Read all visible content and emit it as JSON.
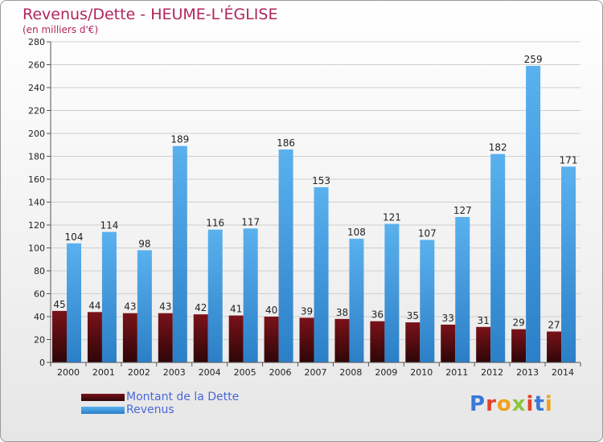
{
  "title": "Revenus/Dette - HEUME-L'ÉGLISE",
  "subtitle": "(en milliers d'€)",
  "logo": {
    "letters": [
      "P",
      "r",
      "o",
      "x",
      "i",
      "t",
      "i"
    ],
    "colors": [
      "#3b78d9",
      "#e5402b",
      "#f1a21a",
      "#8cc63e",
      "#e5402b",
      "#3b78d9",
      "#f1a21a"
    ]
  },
  "colors": {
    "dette": "#6b0f14",
    "revenus": "#3e9be0",
    "grid": "#cfcfcf",
    "axis": "#555555"
  },
  "chart_data": {
    "type": "bar",
    "categories": [
      "2000",
      "2001",
      "2002",
      "2003",
      "2004",
      "2005",
      "2006",
      "2007",
      "2008",
      "2009",
      "2010",
      "2011",
      "2012",
      "2013",
      "2014"
    ],
    "series": [
      {
        "name": "Montant de la Dette",
        "values": [
          45,
          44,
          43,
          43,
          42,
          41,
          40,
          39,
          38,
          36,
          35,
          33,
          31,
          29,
          27
        ]
      },
      {
        "name": "Revenus",
        "values": [
          104,
          114,
          98,
          189,
          116,
          117,
          186,
          153,
          108,
          121,
          107,
          127,
          182,
          259,
          171
        ]
      }
    ],
    "title": "Revenus/Dette - HEUME-L'ÉGLISE",
    "ylim": [
      0,
      280
    ],
    "yticks": [
      0,
      20,
      40,
      60,
      80,
      100,
      120,
      140,
      160,
      180,
      200,
      220,
      240,
      260,
      280
    ],
    "grid": true,
    "legend": "bottom-left"
  }
}
